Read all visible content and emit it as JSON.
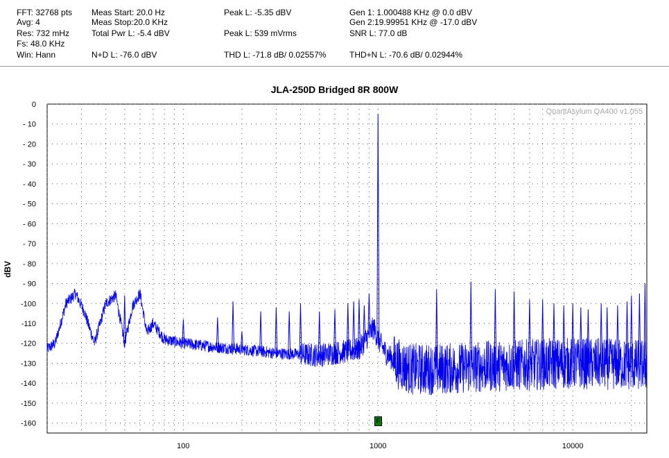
{
  "stats": {
    "fft": "FFT: 32768 pts",
    "avg": "Avg: 4",
    "res": "Res: 732 mHz",
    "fs": "Fs: 48.0 KHz",
    "win": "Win: Hann",
    "meas_start": "Meas Start: 20.0 Hz",
    "meas_stop": "Meas Stop:20.0 KHz",
    "total_pwr": "Total Pwr L: -5.4 dBV",
    "nd": "N+D L: -76.0 dBV",
    "peak_dbv": "Peak L: -5.35 dBV",
    "peak_mv": "Peak L: 539 mVrms",
    "thd": "THD L: -71.8 dB/ 0.02557%",
    "gen1": "Gen 1: 1.000488 KHz @ 0.0  dBV",
    "gen2": "Gen 2:19.99951 KHz @ -17.0  dBV",
    "snr": "SNR L: 77.0 dB",
    "thdn": "THD+N L: -70.6 dB/ 0.02944%"
  },
  "watermark": "QuantAsylum QA400 v1.055",
  "marker_label": "F",
  "colors": {
    "trace": "#0000ee",
    "marker": "#0a7a0a",
    "grid": "#555555"
  },
  "chart_data": {
    "type": "line",
    "title": "JLA-250D Bridged 8R 800W",
    "xlabel": "",
    "ylabel": "dBV",
    "xscale": "log",
    "xlim": [
      20,
      24000
    ],
    "ylim": [
      -165,
      0
    ],
    "grid": true,
    "x_tick_labels": [
      "100",
      "1000",
      "10000"
    ],
    "x_ticks": [
      100,
      1000,
      10000
    ],
    "y_ticks": [
      0,
      -10,
      -20,
      -30,
      -40,
      -50,
      -60,
      -70,
      -80,
      -90,
      -100,
      -110,
      -120,
      -130,
      -140,
      -150,
      -160
    ],
    "y_tick_labels": [
      "0",
      "- 10",
      "- 20",
      "- 30",
      "- 40",
      "- 50",
      "- 60",
      "- 70",
      "- 80",
      "- 90",
      "-100",
      "-110",
      "-120",
      "-130",
      "-140",
      "-150",
      "-160"
    ],
    "series": [
      {
        "floor": [
          [
            20,
            -123
          ],
          [
            22,
            -120
          ],
          [
            25,
            -100
          ],
          [
            28,
            -95
          ],
          [
            31,
            -104
          ],
          [
            35,
            -120
          ],
          [
            40,
            -100
          ],
          [
            45,
            -96
          ],
          [
            50,
            -120
          ],
          [
            55,
            -101
          ],
          [
            60,
            -95
          ],
          [
            65,
            -115
          ],
          [
            70,
            -110
          ],
          [
            80,
            -118
          ],
          [
            100,
            -120
          ],
          [
            150,
            -122
          ],
          [
            200,
            -123
          ],
          [
            300,
            -125
          ],
          [
            500,
            -126
          ],
          [
            800,
            -123
          ],
          [
            950,
            -112
          ],
          [
            1000,
            -118
          ],
          [
            1100,
            -125
          ],
          [
            1300,
            -131
          ],
          [
            1500,
            -133
          ],
          [
            2000,
            -133
          ],
          [
            3000,
            -132
          ],
          [
            5000,
            -131
          ],
          [
            10000,
            -130
          ],
          [
            24000,
            -131
          ]
        ],
        "peaks": [
          [
            1000,
            -5
          ],
          [
            50,
            -96
          ],
          [
            100,
            -108
          ],
          [
            150,
            -107
          ],
          [
            180,
            -99
          ],
          [
            200,
            -114
          ],
          [
            250,
            -104
          ],
          [
            300,
            -102
          ],
          [
            350,
            -104
          ],
          [
            400,
            -100
          ],
          [
            500,
            -104
          ],
          [
            600,
            -103
          ],
          [
            700,
            -100
          ],
          [
            750,
            -99
          ],
          [
            800,
            -98
          ],
          [
            850,
            -101
          ],
          [
            900,
            -95
          ],
          [
            2000,
            -93
          ],
          [
            3000,
            -89
          ],
          [
            4000,
            -93
          ],
          [
            5000,
            -94
          ],
          [
            6000,
            -98
          ],
          [
            7000,
            -98
          ],
          [
            8000,
            -100
          ],
          [
            9000,
            -101
          ],
          [
            10000,
            -100
          ],
          [
            11000,
            -102
          ],
          [
            12000,
            -103
          ],
          [
            14000,
            -100
          ],
          [
            15000,
            -102
          ],
          [
            17000,
            -101
          ],
          [
            19000,
            -99
          ],
          [
            20000,
            -96
          ],
          [
            22000,
            -95
          ],
          [
            23500,
            -90
          ]
        ]
      }
    ]
  }
}
